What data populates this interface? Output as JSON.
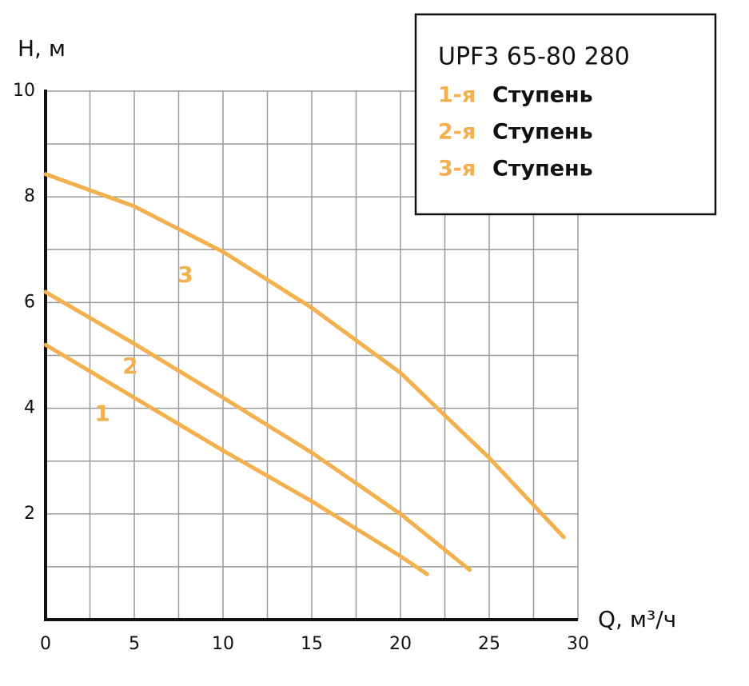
{
  "chart_data": {
    "type": "line",
    "y_label": "H, м",
    "x_label": "Q, м³/ч",
    "legend_title": "UPF3 65-80 280",
    "legend_word": "Ступень",
    "xlim": [
      0,
      30
    ],
    "ylim": [
      0,
      10
    ],
    "xticks": [
      0,
      5,
      10,
      15,
      20,
      25,
      30
    ],
    "yticks": [
      2,
      4,
      6,
      8,
      10
    ],
    "xgrid": [
      2.5,
      5,
      7.5,
      10,
      12.5,
      15,
      17.5,
      20,
      22.5,
      25,
      27.5,
      30
    ],
    "ygrid": [
      1,
      2,
      3,
      4,
      5,
      6,
      7,
      8,
      9,
      10
    ],
    "grid": true,
    "legend": "upper right",
    "series": [
      {
        "name": "1-я",
        "label": "1",
        "color": "#f2b04e",
        "x": [
          0,
          5,
          10,
          15,
          20,
          21.5
        ],
        "values": [
          5.2,
          4.2,
          3.2,
          2.24,
          1.2,
          0.86
        ]
      },
      {
        "name": "2-я",
        "label": "2",
        "color": "#f2b04e",
        "x": [
          0,
          5,
          10,
          15,
          20,
          23.9
        ],
        "values": [
          6.2,
          5.22,
          4.2,
          3.16,
          2.0,
          0.94
        ]
      },
      {
        "name": "3-я",
        "label": "3",
        "color": "#f2b04e",
        "x": [
          0,
          5,
          10,
          15,
          20,
          25,
          29.2
        ],
        "values": [
          8.43,
          7.82,
          6.96,
          5.9,
          4.67,
          3.06,
          1.56
        ]
      }
    ]
  }
}
